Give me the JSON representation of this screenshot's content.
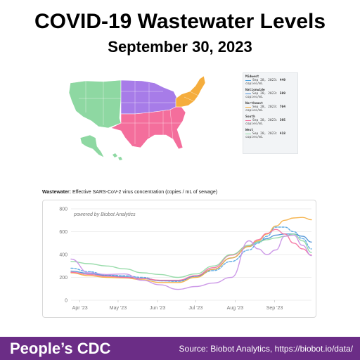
{
  "header": {
    "title": "COVID-19 Wastewater Levels",
    "subtitle": "September 30, 2023"
  },
  "map": {
    "regions": [
      {
        "name": "West",
        "color": "#8ed8a2"
      },
      {
        "name": "Midwest",
        "color": "#a77ce8"
      },
      {
        "name": "South",
        "color": "#f46e9c"
      },
      {
        "name": "Northeast",
        "color": "#f5ad3d"
      }
    ]
  },
  "legend": {
    "entries": [
      {
        "region": "Midwest",
        "date": "Sep 28, 2023:",
        "value": "449",
        "unit": "copies/mL",
        "color": "#4fa3e0"
      },
      {
        "region": "Nationwide",
        "date": "Sep 28, 2023:",
        "value": "509",
        "unit": "copies/mL",
        "color": "#4a8fd6"
      },
      {
        "region": "Northeast",
        "date": "Sep 28, 2023:",
        "value": "704",
        "unit": "copies/mL",
        "color": "#f5ad3d"
      },
      {
        "region": "South",
        "date": "Sep 28, 2023:",
        "value": "395",
        "unit": "copies/mL",
        "color": "#f46e9c"
      },
      {
        "region": "West",
        "date": "Sep 28, 2023:",
        "value": "418",
        "unit": "copies/mL",
        "color": "#8ed8a2"
      }
    ]
  },
  "chart_header": {
    "bold": "Wastewater:",
    "rest": "Effective SARS-CoV-2 virus concentration (copies / mL of sewage)"
  },
  "chart_data": {
    "type": "line",
    "annotation": "powered by Biobot Analytics",
    "x_tick_labels": [
      "Apr '23",
      "May '23",
      "Jun '23",
      "Jul '23",
      "Aug '23",
      "Sep '23"
    ],
    "x_tick_dates": [
      "2023-04-01",
      "2023-05-01",
      "2023-06-01",
      "2023-07-01",
      "2023-08-01",
      "2023-09-01"
    ],
    "xlim": [
      "2023-03-25",
      "2023-09-30"
    ],
    "ylim": [
      0,
      800
    ],
    "y_ticks": [
      0,
      200,
      400,
      600,
      800
    ],
    "grid": true,
    "x": [
      "2023-03-25",
      "2023-04-08",
      "2023-04-22",
      "2023-05-06",
      "2023-05-20",
      "2023-06-03",
      "2023-06-17",
      "2023-07-01",
      "2023-07-15",
      "2023-07-29",
      "2023-08-12",
      "2023-08-19",
      "2023-08-26",
      "2023-09-02",
      "2023-09-09",
      "2023-09-16",
      "2023-09-23",
      "2023-09-30"
    ],
    "series": [
      {
        "name": "Midwest",
        "color": "#4fa3e0",
        "dashed": true,
        "values": [
          280,
          250,
          220,
          215,
          200,
          170,
          165,
          210,
          260,
          340,
          440,
          500,
          560,
          640,
          640,
          600,
          540,
          449
        ]
      },
      {
        "name": "Nationwide",
        "color": "#4a8fd6",
        "dashed": false,
        "values": [
          255,
          235,
          215,
          205,
          190,
          170,
          170,
          210,
          270,
          370,
          470,
          510,
          540,
          570,
          580,
          580,
          560,
          509
        ]
      },
      {
        "name": "Northeast",
        "color": "#f5ad3d",
        "dashed": false,
        "values": [
          240,
          215,
          200,
          195,
          180,
          155,
          155,
          200,
          270,
          370,
          470,
          520,
          580,
          650,
          700,
          720,
          725,
          704
        ]
      },
      {
        "name": "South",
        "color": "#f46e9c",
        "dashed": false,
        "values": [
          245,
          225,
          210,
          200,
          190,
          175,
          175,
          215,
          285,
          395,
          480,
          530,
          585,
          620,
          580,
          500,
          450,
          395
        ]
      },
      {
        "name": "West",
        "color": "#8ed8a2",
        "dashed": false,
        "values": [
          340,
          320,
          300,
          275,
          240,
          225,
          200,
          230,
          300,
          400,
          480,
          510,
          530,
          545,
          560,
          580,
          520,
          418
        ]
      },
      {
        "name": "",
        "color": "#c88fe6",
        "dashed": false,
        "values": [
          360,
          240,
          225,
          230,
          175,
          135,
          95,
          120,
          150,
          200,
          520,
          450,
          400,
          440,
          560,
          570,
          480,
          390
        ]
      }
    ]
  },
  "footer": {
    "brand": "People’s CDC",
    "source": "Source: Biobot Analytics, https://biobot.io/data/"
  }
}
